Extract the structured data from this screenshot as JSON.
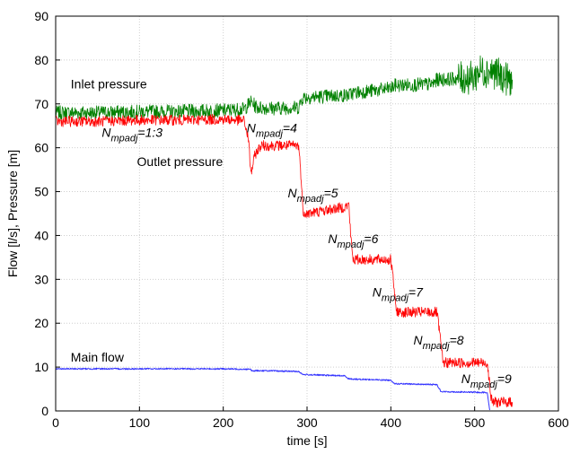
{
  "chart_data": {
    "type": "line",
    "xlabel": "time [s]",
    "ylabel": "Flow [l/s], Pressure [m]",
    "xlim": [
      0,
      600
    ],
    "ylim": [
      0,
      90
    ],
    "xticks": [
      "0",
      "100",
      "200",
      "300",
      "400",
      "500",
      "600"
    ],
    "yticks": [
      "0",
      "10",
      "20",
      "30",
      "40",
      "50",
      "60",
      "70",
      "80",
      "90"
    ],
    "grid": true,
    "series": [
      {
        "name": "Inlet pressure",
        "color": "#008000",
        "x": [
          0,
          50,
          100,
          150,
          200,
          225,
          233,
          240,
          260,
          290,
          295,
          300,
          350,
          355,
          400,
          405,
          450,
          455,
          500,
          505,
          520,
          530,
          540,
          545
        ],
        "y": [
          68,
          68,
          68.2,
          68.3,
          68.5,
          68.8,
          70.5,
          69.2,
          69,
          69.2,
          71.5,
          71.5,
          72,
          72.5,
          73.5,
          74.2,
          74.5,
          75.5,
          76,
          77.5,
          77.5,
          76.5,
          75.5,
          75.5
        ]
      },
      {
        "name": "Outlet pressure",
        "color": "#ff0000",
        "x": [
          0,
          50,
          100,
          150,
          200,
          225,
          230,
          233,
          238,
          245,
          255,
          290,
          293,
          295,
          300,
          345,
          350,
          352,
          355,
          400,
          404,
          406,
          410,
          455,
          460,
          462,
          465,
          515,
          518,
          520,
          523,
          545
        ],
        "y": [
          66,
          66,
          66.3,
          66.3,
          66.5,
          66.2,
          62,
          54,
          58.5,
          60.5,
          60.5,
          60.5,
          53,
          45.5,
          45,
          46.5,
          47,
          40,
          34.5,
          34.5,
          28,
          23,
          22.5,
          22.5,
          15,
          11,
          11,
          11,
          6,
          2.5,
          2,
          2
        ]
      },
      {
        "name": "Main flow",
        "color": "#3333ff",
        "x": [
          0,
          100,
          200,
          232,
          235,
          240,
          290,
          295,
          345,
          350,
          400,
          405,
          455,
          460,
          515,
          518
        ],
        "y": [
          9.6,
          9.6,
          9.6,
          9.5,
          9.1,
          9.2,
          9.0,
          8.3,
          8.0,
          7.3,
          7.0,
          6.2,
          6.0,
          4.4,
          4.2,
          0.2
        ]
      }
    ],
    "annotations": [
      {
        "id": "inlet_label",
        "text": "Inlet pressure",
        "x": 18,
        "y": 73.5
      },
      {
        "id": "outlet_label",
        "text": "Outlet pressure",
        "x": 97,
        "y": 55.8
      },
      {
        "id": "flow_label",
        "text": "Main flow",
        "x": 18,
        "y": 11.2
      },
      {
        "id": "n13",
        "prefix": "N",
        "sub": "mpadj",
        "suffix": "=1:3",
        "x": 55,
        "y": 62.5
      },
      {
        "id": "n4",
        "prefix": "N",
        "sub": "mpadj",
        "suffix": "=4",
        "x": 228,
        "y": 63.5
      },
      {
        "id": "n5",
        "prefix": "N",
        "sub": "mpadj",
        "suffix": "=5",
        "x": 277,
        "y": 48.7
      },
      {
        "id": "n6",
        "prefix": "N",
        "sub": "mpadj",
        "suffix": "=6",
        "x": 325,
        "y": 38.3
      },
      {
        "id": "n7",
        "prefix": "N",
        "sub": "mpadj",
        "suffix": "=7",
        "x": 378,
        "y": 26.1
      },
      {
        "id": "n8",
        "prefix": "N",
        "sub": "mpadj",
        "suffix": "=8",
        "x": 427,
        "y": 15.1
      },
      {
        "id": "n9",
        "prefix": "N",
        "sub": "mpadj",
        "suffix": "=9",
        "x": 484,
        "y": 6.3
      }
    ]
  }
}
